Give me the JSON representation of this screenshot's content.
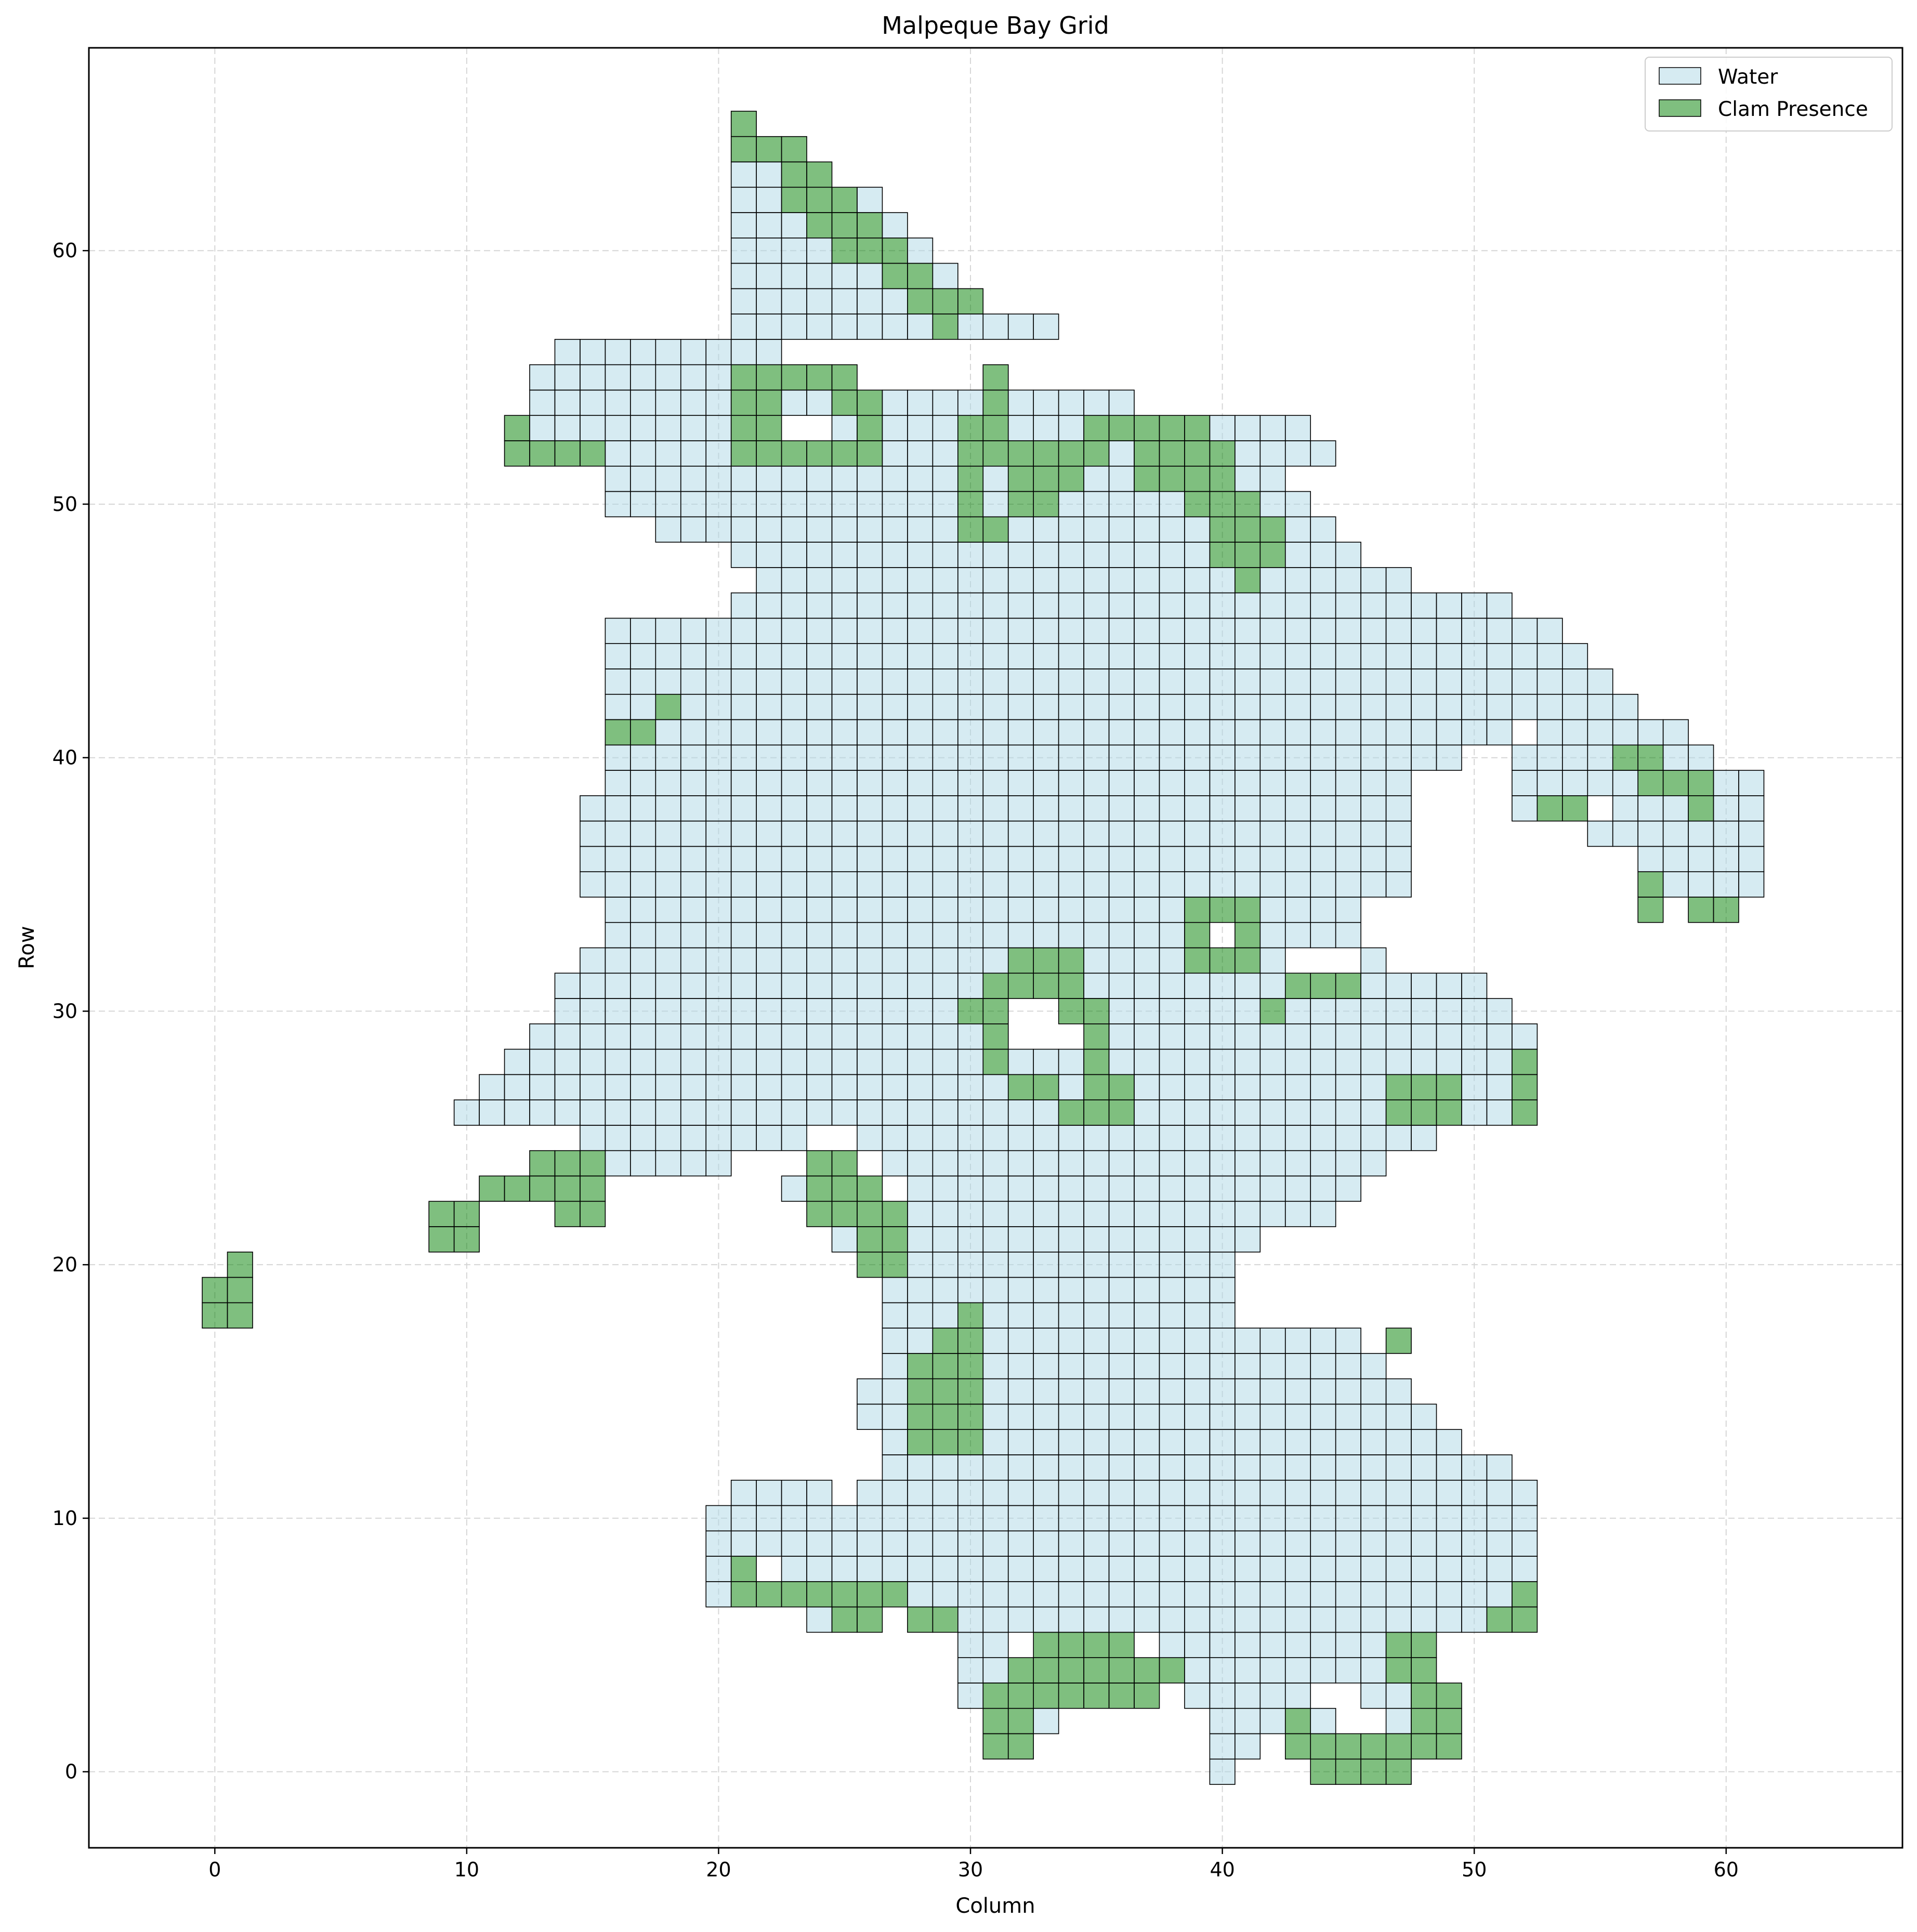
{
  "chart_data": {
    "type": "heatmap",
    "title": "Malpeque Bay Grid",
    "xlabel": "Column",
    "ylabel": "Row",
    "xlim": [
      -5,
      67
    ],
    "ylim": [
      -3,
      68
    ],
    "xticks": [
      0,
      10,
      20,
      30,
      40,
      50,
      60
    ],
    "yticks": [
      0,
      10,
      20,
      30,
      40,
      50,
      60
    ],
    "grid": true,
    "legend_position": "top-right",
    "legend": [
      {
        "key": "water",
        "label": "Water",
        "color": "#add8e6"
      },
      {
        "key": "clam",
        "label": "Clam Presence",
        "color": "#008000"
      }
    ],
    "cell_size": 1,
    "water_runs": [
      [
        0,
        [
          [
            40,
            40
          ]
        ]
      ],
      [
        1,
        [
          [
            40,
            41
          ],
          [
            44,
            44
          ]
        ]
      ],
      [
        2,
        [
          [
            31,
            32
          ],
          [
            33,
            33
          ],
          [
            40,
            42
          ],
          [
            43,
            44
          ],
          [
            47,
            47
          ]
        ]
      ],
      [
        3,
        [
          [
            30,
            30
          ],
          [
            39,
            43
          ],
          [
            46,
            47
          ]
        ]
      ],
      [
        4,
        [
          [
            30,
            31
          ],
          [
            38,
            47
          ]
        ]
      ],
      [
        5,
        [
          [
            30,
            31
          ],
          [
            38,
            47
          ]
        ]
      ],
      [
        6,
        [
          [
            24,
            25
          ],
          [
            29,
            51
          ]
        ]
      ],
      [
        7,
        [
          [
            20,
            20
          ],
          [
            28,
            52
          ]
        ]
      ],
      [
        8,
        [
          [
            20,
            20
          ],
          [
            23,
            52
          ]
        ]
      ],
      [
        9,
        [
          [
            20,
            52
          ]
        ]
      ],
      [
        10,
        [
          [
            20,
            52
          ]
        ]
      ],
      [
        11,
        [
          [
            21,
            24
          ],
          [
            26,
            52
          ]
        ]
      ],
      [
        12,
        [
          [
            27,
            51
          ]
        ]
      ],
      [
        13,
        [
          [
            27,
            49
          ]
        ]
      ],
      [
        14,
        [
          [
            26,
            27
          ],
          [
            30,
            48
          ]
        ]
      ],
      [
        15,
        [
          [
            26,
            27
          ],
          [
            30,
            47
          ]
        ]
      ],
      [
        16,
        [
          [
            27,
            28
          ],
          [
            30,
            46
          ]
        ]
      ],
      [
        17,
        [
          [
            27,
            28
          ],
          [
            30,
            45
          ]
        ]
      ],
      [
        18,
        [
          [
            27,
            29
          ],
          [
            30,
            40
          ]
        ]
      ],
      [
        19,
        [
          [
            27,
            29
          ],
          [
            30,
            40
          ]
        ]
      ],
      [
        20,
        [
          [
            27,
            40
          ]
        ]
      ],
      [
        21,
        [
          [
            25,
            25
          ],
          [
            27,
            41
          ]
        ]
      ],
      [
        22,
        [
          [
            28,
            44
          ]
        ]
      ],
      [
        23,
        [
          [
            23,
            23
          ],
          [
            28,
            45
          ]
        ]
      ],
      [
        24,
        [
          [
            16,
            20
          ],
          [
            27,
            46
          ]
        ]
      ],
      [
        25,
        [
          [
            15,
            20
          ],
          [
            21,
            23
          ],
          [
            26,
            48
          ]
        ]
      ],
      [
        26,
        [
          [
            10,
            52
          ]
        ]
      ],
      [
        27,
        [
          [
            11,
            47
          ],
          [
            50,
            51
          ]
        ]
      ],
      [
        28,
        [
          [
            12,
            52
          ]
        ]
      ],
      [
        29,
        [
          [
            13,
            30
          ],
          [
            31,
            31
          ],
          [
            36,
            52
          ]
        ]
      ],
      [
        30,
        [
          [
            14,
            29
          ],
          [
            31,
            31
          ],
          [
            36,
            51
          ]
        ]
      ],
      [
        31,
        [
          [
            14,
            50
          ]
        ]
      ],
      [
        32,
        [
          [
            15,
            42
          ],
          [
            46,
            46
          ]
        ]
      ],
      [
        33,
        [
          [
            16,
            45
          ]
        ]
      ],
      [
        34,
        [
          [
            16,
            45
          ]
        ]
      ],
      [
        35,
        [
          [
            15,
            47
          ],
          [
            58,
            61
          ]
        ]
      ],
      [
        36,
        [
          [
            15,
            47
          ],
          [
            57,
            61
          ]
        ]
      ],
      [
        37,
        [
          [
            15,
            47
          ],
          [
            55,
            61
          ]
        ]
      ],
      [
        38,
        [
          [
            15,
            47
          ],
          [
            52,
            54
          ],
          [
            56,
            61
          ]
        ]
      ],
      [
        39,
        [
          [
            16,
            47
          ],
          [
            52,
            61
          ]
        ]
      ],
      [
        40,
        [
          [
            16,
            49
          ],
          [
            52,
            59
          ]
        ]
      ],
      [
        41,
        [
          [
            18,
            51
          ],
          [
            53,
            58
          ]
        ]
      ],
      [
        42,
        [
          [
            16,
            18
          ],
          [
            19,
            56
          ]
        ]
      ],
      [
        43,
        [
          [
            16,
            55
          ]
        ]
      ],
      [
        44,
        [
          [
            16,
            54
          ]
        ]
      ],
      [
        45,
        [
          [
            16,
            53
          ]
        ]
      ],
      [
        46,
        [
          [
            21,
            51
          ]
        ]
      ],
      [
        47,
        [
          [
            22,
            47
          ]
        ]
      ],
      [
        48,
        [
          [
            21,
            45
          ]
        ]
      ],
      [
        49,
        [
          [
            18,
            44
          ]
        ]
      ],
      [
        50,
        [
          [
            16,
            43
          ]
        ]
      ],
      [
        51,
        [
          [
            16,
            42
          ]
        ]
      ],
      [
        52,
        [
          [
            12,
            44
          ]
        ]
      ],
      [
        53,
        [
          [
            12,
            43
          ]
        ]
      ],
      [
        54,
        [
          [
            13,
            36
          ]
        ]
      ],
      [
        55,
        [
          [
            13,
            22
          ]
        ]
      ],
      [
        56,
        [
          [
            14,
            22
          ]
        ]
      ],
      [
        57,
        [
          [
            21,
            33
          ]
        ]
      ],
      [
        58,
        [
          [
            21,
            30
          ]
        ]
      ],
      [
        59,
        [
          [
            21,
            29
          ]
        ]
      ],
      [
        60,
        [
          [
            21,
            28
          ]
        ]
      ],
      [
        61,
        [
          [
            21,
            27
          ]
        ]
      ],
      [
        62,
        [
          [
            21,
            26
          ]
        ]
      ],
      [
        63,
        [
          [
            21,
            24
          ]
        ]
      ],
      [
        64,
        [
          [
            21,
            23
          ]
        ]
      ],
      [
        65,
        [
          [
            21,
            21
          ]
        ]
      ]
    ],
    "clam_runs": [
      [
        0,
        [
          [
            44,
            47
          ]
        ]
      ],
      [
        1,
        [
          [
            31,
            32
          ],
          [
            43,
            49
          ]
        ]
      ],
      [
        2,
        [
          [
            31,
            32
          ],
          [
            43,
            43
          ],
          [
            48,
            49
          ]
        ]
      ],
      [
        3,
        [
          [
            31,
            37
          ],
          [
            48,
            49
          ]
        ]
      ],
      [
        4,
        [
          [
            32,
            38
          ],
          [
            47,
            48
          ]
        ]
      ],
      [
        5,
        [
          [
            33,
            36
          ],
          [
            47,
            48
          ]
        ]
      ],
      [
        6,
        [
          [
            25,
            26
          ],
          [
            28,
            29
          ],
          [
            51,
            52
          ]
        ]
      ],
      [
        7,
        [
          [
            21,
            27
          ],
          [
            52,
            52
          ]
        ]
      ],
      [
        8,
        [
          [
            21,
            21
          ]
        ]
      ],
      [
        13,
        [
          [
            28,
            30
          ]
        ]
      ],
      [
        14,
        [
          [
            28,
            30
          ]
        ]
      ],
      [
        15,
        [
          [
            28,
            30
          ]
        ]
      ],
      [
        16,
        [
          [
            28,
            30
          ]
        ]
      ],
      [
        17,
        [
          [
            29,
            30
          ],
          [
            47,
            47
          ]
        ]
      ],
      [
        18,
        [
          [
            30,
            30
          ]
        ]
      ],
      [
        18,
        [
          [
            0,
            1
          ]
        ]
      ],
      [
        19,
        [
          [
            0,
            1
          ]
        ]
      ],
      [
        20,
        [
          [
            1,
            1
          ],
          [
            26,
            27
          ]
        ]
      ],
      [
        21,
        [
          [
            9,
            10
          ],
          [
            26,
            27
          ]
        ]
      ],
      [
        22,
        [
          [
            9,
            10
          ],
          [
            14,
            15
          ],
          [
            24,
            27
          ]
        ]
      ],
      [
        23,
        [
          [
            11,
            15
          ],
          [
            24,
            26
          ]
        ]
      ],
      [
        24,
        [
          [
            13,
            15
          ],
          [
            24,
            25
          ]
        ]
      ],
      [
        26,
        [
          [
            34,
            36
          ],
          [
            47,
            49
          ],
          [
            52,
            52
          ]
        ]
      ],
      [
        27,
        [
          [
            32,
            33
          ],
          [
            35,
            36
          ],
          [
            47,
            49
          ],
          [
            52,
            52
          ]
        ]
      ],
      [
        28,
        [
          [
            31,
            31
          ],
          [
            35,
            35
          ],
          [
            52,
            52
          ]
        ]
      ],
      [
        29,
        [
          [
            31,
            31
          ],
          [
            35,
            35
          ]
        ]
      ],
      [
        30,
        [
          [
            30,
            31
          ],
          [
            34,
            35
          ],
          [
            42,
            42
          ]
        ]
      ],
      [
        31,
        [
          [
            31,
            34
          ],
          [
            43,
            45
          ]
        ]
      ],
      [
        32,
        [
          [
            32,
            34
          ],
          [
            39,
            41
          ]
        ]
      ],
      [
        33,
        [
          [
            39,
            39
          ],
          [
            41,
            41
          ]
        ]
      ],
      [
        34,
        [
          [
            39,
            41
          ],
          [
            57,
            57
          ],
          [
            59,
            60
          ]
        ]
      ],
      [
        35,
        [
          [
            57,
            57
          ]
        ]
      ],
      [
        38,
        [
          [
            53,
            54
          ],
          [
            59,
            59
          ]
        ]
      ],
      [
        39,
        [
          [
            57,
            59
          ]
        ]
      ],
      [
        40,
        [
          [
            56,
            57
          ]
        ]
      ],
      [
        41,
        [
          [
            16,
            17
          ]
        ]
      ],
      [
        42,
        [
          [
            18,
            18
          ]
        ]
      ],
      [
        47,
        [
          [
            41,
            41
          ]
        ]
      ],
      [
        48,
        [
          [
            40,
            42
          ]
        ]
      ],
      [
        49,
        [
          [
            30,
            31
          ],
          [
            40,
            42
          ]
        ]
      ],
      [
        50,
        [
          [
            30,
            30
          ],
          [
            32,
            33
          ],
          [
            39,
            41
          ]
        ]
      ],
      [
        51,
        [
          [
            30,
            30
          ],
          [
            32,
            34
          ],
          [
            37,
            40
          ]
        ]
      ],
      [
        52,
        [
          [
            12,
            15
          ],
          [
            21,
            26
          ],
          [
            30,
            31
          ],
          [
            32,
            35
          ],
          [
            37,
            40
          ]
        ]
      ],
      [
        53,
        [
          [
            12,
            12
          ],
          [
            21,
            22
          ],
          [
            26,
            26
          ],
          [
            30,
            31
          ],
          [
            35,
            39
          ]
        ]
      ],
      [
        54,
        [
          [
            21,
            22
          ],
          [
            25,
            26
          ],
          [
            31,
            31
          ]
        ]
      ],
      [
        55,
        [
          [
            21,
            25
          ],
          [
            31,
            31
          ]
        ]
      ],
      [
        57,
        [
          [
            29,
            29
          ]
        ]
      ],
      [
        58,
        [
          [
            28,
            30
          ]
        ]
      ],
      [
        59,
        [
          [
            27,
            28
          ]
        ]
      ],
      [
        60,
        [
          [
            25,
            27
          ]
        ]
      ],
      [
        61,
        [
          [
            24,
            26
          ]
        ]
      ],
      [
        62,
        [
          [
            23,
            25
          ]
        ]
      ],
      [
        63,
        [
          [
            23,
            24
          ]
        ]
      ],
      [
        64,
        [
          [
            21,
            23
          ]
        ]
      ],
      [
        65,
        [
          [
            21,
            21
          ]
        ]
      ]
    ],
    "empty_cells": [
      [
        40,
        33
      ],
      [
        23,
        53
      ],
      [
        24,
        53
      ]
    ]
  }
}
